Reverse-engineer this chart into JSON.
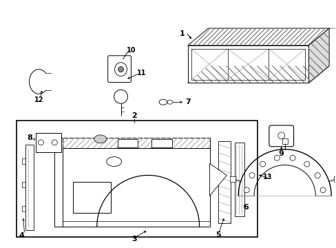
{
  "bg_color": "#ffffff",
  "line_color": "#000000",
  "gray": "#888888",
  "fig_width": 4.89,
  "fig_height": 3.6,
  "dpi": 100,
  "lw": 0.7,
  "hatch_color": "#aaaaaa"
}
